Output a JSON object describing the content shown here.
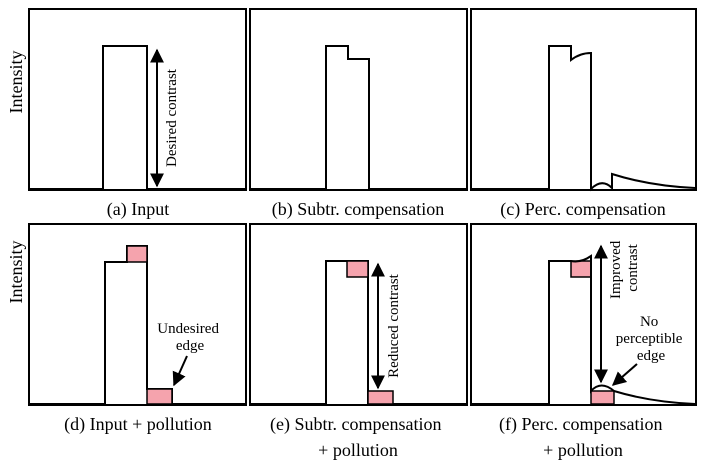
{
  "figure": {
    "y_axis_label": "Intensity",
    "panels": [
      {
        "caption_lines": [
          "(a) Input"
        ]
      },
      {
        "caption_lines": [
          "(b) Subtr. compensation"
        ]
      },
      {
        "caption_lines": [
          "(c) Perc. compensation"
        ]
      },
      {
        "caption_lines": [
          "(d) Input + pollution"
        ]
      },
      {
        "caption_lines": [
          "(e) Subtr. compensation",
          "+ pollution"
        ]
      },
      {
        "caption_lines": [
          "(f) Perc. compensation",
          "+ pollution"
        ]
      }
    ],
    "annotations": {
      "desired_contrast": "Desired contrast",
      "reduced_contrast": "Reduced contrast",
      "improved_contrast": [
        "Improved",
        "contrast"
      ],
      "undesired_edge": [
        "Undesired",
        "edge"
      ],
      "no_perceptible_edge": [
        "No",
        "perceptible",
        "edge"
      ]
    },
    "colors": {
      "pollution": "#f5a3ad",
      "stroke": "#000000",
      "background": "#ffffff"
    }
  }
}
